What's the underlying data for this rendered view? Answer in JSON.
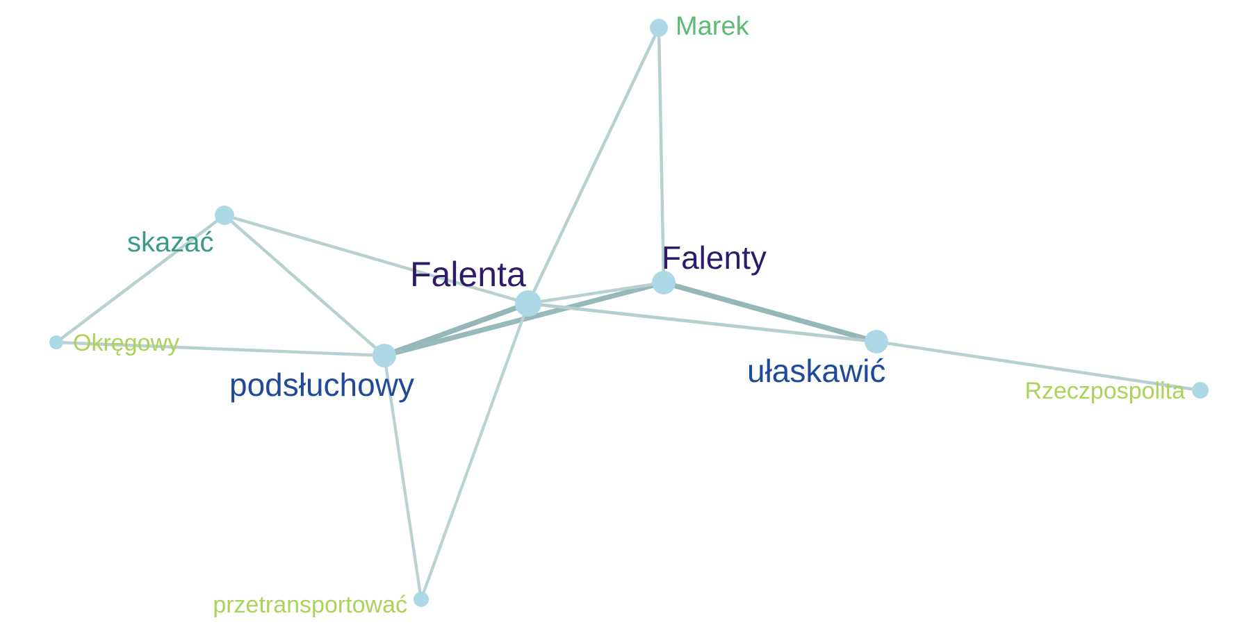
{
  "graph": {
    "node_color": "#add8e6",
    "nodes": [
      {
        "id": "falenta",
        "label": "Falenta",
        "color": "#2e1a6b"
      },
      {
        "id": "falenty",
        "label": "Falenty",
        "color": "#2e1a6b"
      },
      {
        "id": "podsluchowy",
        "label": "podsłuchowy",
        "color": "#1f4a9a"
      },
      {
        "id": "ulaskawic",
        "label": "ułaskawić",
        "color": "#1f4a9a"
      },
      {
        "id": "skazac",
        "label": "skazać",
        "color": "#3a9a88"
      },
      {
        "id": "marek",
        "label": "Marek",
        "color": "#5dbb73"
      },
      {
        "id": "okregowy",
        "label": "Okręgowy",
        "color": "#a9d45a"
      },
      {
        "id": "rzeczpospolita",
        "label": "Rzeczpospolita",
        "color": "#a9d45a"
      },
      {
        "id": "przetransportowac",
        "label": "przetransportować",
        "color": "#a9d45a"
      }
    ],
    "edges": [
      {
        "source": "falenta",
        "target": "podsluchowy",
        "strength": 0.9
      },
      {
        "source": "podsluchowy",
        "target": "falenty",
        "strength": 0.85
      },
      {
        "source": "falenty",
        "target": "ulaskawic",
        "strength": 0.9
      },
      {
        "source": "falenta",
        "target": "falenty",
        "strength": 0.3
      },
      {
        "source": "falenta",
        "target": "ulaskawic",
        "strength": 0.35
      },
      {
        "source": "falenta",
        "target": "marek",
        "strength": 0.3
      },
      {
        "source": "marek",
        "target": "falenty",
        "strength": 0.3
      },
      {
        "source": "falenta",
        "target": "skazac",
        "strength": 0.3
      },
      {
        "source": "skazac",
        "target": "podsluchowy",
        "strength": 0.3
      },
      {
        "source": "skazac",
        "target": "okregowy",
        "strength": 0.3
      },
      {
        "source": "okregowy",
        "target": "podsluchowy",
        "strength": 0.3
      },
      {
        "source": "ulaskawic",
        "target": "rzeczpospolita",
        "strength": 0.3
      },
      {
        "source": "falenta",
        "target": "przetransportowac",
        "strength": 0.25
      },
      {
        "source": "podsluchowy",
        "target": "przetransportowac",
        "strength": 0.25
      }
    ]
  }
}
